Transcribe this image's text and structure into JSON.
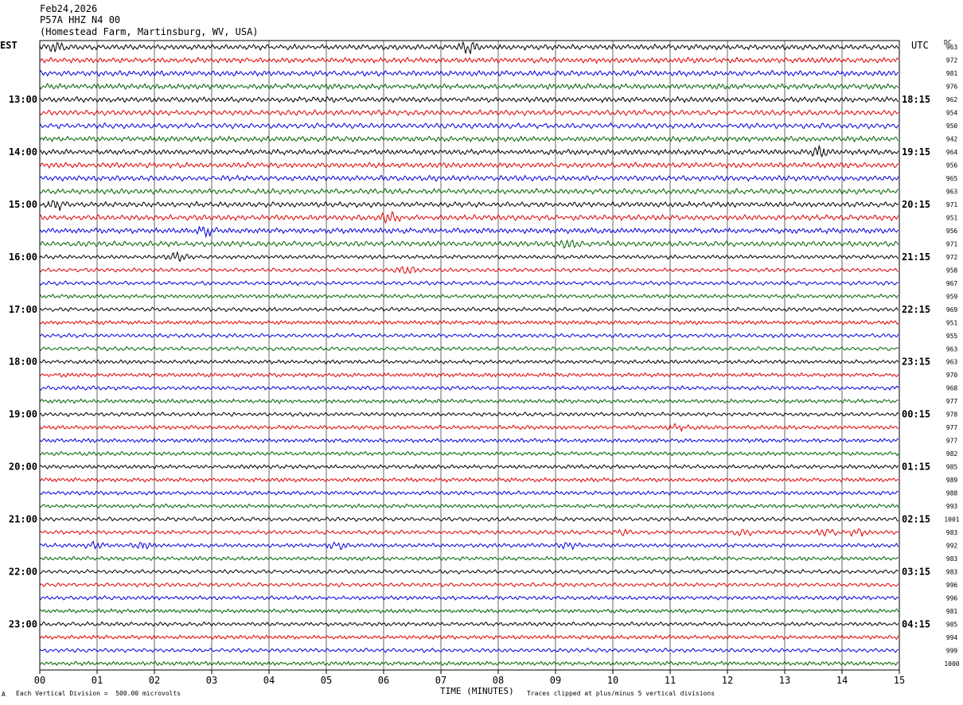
{
  "header": {
    "date": "Feb24,2026",
    "station": "P57A HHZ N4 00",
    "location": "(Homestead Farm, Martinsburg, WV, USA)"
  },
  "left_tz": "EST",
  "right_tz": "UTC",
  "dc_label": "DC",
  "footer": {
    "scale_note": "Each Vertical Division =  500.00 microvolts",
    "clip_note": "Traces clipped at plus/minus 5 vertical divisions",
    "corner_mark": "A"
  },
  "colors": {
    "trace_cycle": [
      "#000000",
      "#e00000",
      "#0000e0",
      "#006400"
    ],
    "grid": "#000000"
  },
  "chart_data": {
    "type": "line",
    "title": "Feb24,2026 P57A HHZ N4 00 (Homestead Farm, Martinsburg, WV, USA)",
    "xlabel": "TIME (MINUTES)",
    "ylabel": "",
    "xlim": [
      0,
      15
    ],
    "x_ticks": [
      "00",
      "01",
      "02",
      "03",
      "04",
      "05",
      "06",
      "07",
      "08",
      "09",
      "10",
      "11",
      "12",
      "13",
      "14",
      "15"
    ],
    "grid": true,
    "rows_per_hour": 4,
    "left_hour_labels": [
      "13:00",
      "14:00",
      "15:00",
      "16:00",
      "17:00",
      "18:00",
      "19:00",
      "20:00",
      "21:00",
      "22:00",
      "23:00"
    ],
    "right_hour_labels": [
      "18:15",
      "19:15",
      "20:15",
      "21:15",
      "22:15",
      "23:15",
      "00:15",
      "01:15",
      "02:15",
      "03:15",
      "04:15"
    ],
    "dc_offsets": [
      963,
      972,
      981,
      976,
      962,
      954,
      950,
      942,
      964,
      956,
      965,
      963,
      971,
      951,
      956,
      971,
      972,
      958,
      967,
      959,
      969,
      951,
      955,
      963,
      963,
      970,
      968,
      977,
      978,
      977,
      977,
      982,
      985,
      989,
      988,
      993,
      1001,
      983,
      992,
      983,
      983,
      996,
      996,
      981,
      985,
      994,
      999,
      1000
    ],
    "bursts": [
      {
        "row": 0,
        "minute": 7.5,
        "amp": 2.4
      },
      {
        "row": 0,
        "minute": 0.3,
        "amp": 1.4
      },
      {
        "row": 8,
        "minute": 13.6,
        "amp": 2.0
      },
      {
        "row": 12,
        "minute": 0.3,
        "amp": 1.6
      },
      {
        "row": 13,
        "minute": 6.1,
        "amp": 1.4
      },
      {
        "row": 14,
        "minute": 2.9,
        "amp": 1.5
      },
      {
        "row": 15,
        "minute": 9.2,
        "amp": 1.3
      },
      {
        "row": 16,
        "minute": 2.4,
        "amp": 2.0
      },
      {
        "row": 17,
        "minute": 6.4,
        "amp": 2.2
      },
      {
        "row": 29,
        "minute": 11.1,
        "amp": 1.2
      },
      {
        "row": 37,
        "minute": 10.2,
        "amp": 1.4
      },
      {
        "row": 37,
        "minute": 12.3,
        "amp": 1.5
      },
      {
        "row": 37,
        "minute": 13.7,
        "amp": 1.6
      },
      {
        "row": 37,
        "minute": 14.3,
        "amp": 1.8
      },
      {
        "row": 38,
        "minute": 1.0,
        "amp": 1.5
      },
      {
        "row": 38,
        "minute": 1.8,
        "amp": 1.4
      },
      {
        "row": 38,
        "minute": 5.2,
        "amp": 1.5
      },
      {
        "row": 38,
        "minute": 9.2,
        "amp": 1.3
      }
    ]
  }
}
